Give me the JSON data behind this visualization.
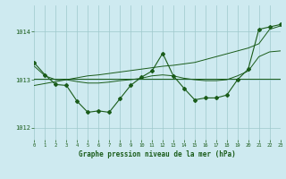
{
  "x": [
    0,
    1,
    2,
    3,
    4,
    5,
    6,
    7,
    8,
    9,
    10,
    11,
    12,
    13,
    14,
    15,
    16,
    17,
    18,
    19,
    20,
    21,
    22,
    23
  ],
  "line_main": [
    1013.35,
    1013.1,
    1012.9,
    1012.88,
    1012.55,
    1012.32,
    1012.35,
    1012.32,
    1012.6,
    1012.88,
    1013.05,
    1013.18,
    1013.55,
    1013.08,
    1012.82,
    1012.58,
    1012.62,
    1012.62,
    1012.68,
    1013.0,
    1013.22,
    1014.05,
    1014.1,
    1014.15
  ],
  "line_flat": [
    1013.02,
    1013.02,
    1013.02,
    1013.02,
    1013.02,
    1013.02,
    1013.02,
    1013.02,
    1013.02,
    1013.02,
    1013.02,
    1013.02,
    1013.02,
    1013.02,
    1013.02,
    1013.02,
    1013.02,
    1013.02,
    1013.02,
    1013.02,
    1013.02,
    1013.02,
    1013.02,
    1013.02
  ],
  "line_trend": [
    1012.88,
    1012.92,
    1012.96,
    1013.0,
    1013.04,
    1013.08,
    1013.1,
    1013.13,
    1013.16,
    1013.19,
    1013.22,
    1013.25,
    1013.28,
    1013.3,
    1013.33,
    1013.36,
    1013.42,
    1013.48,
    1013.54,
    1013.6,
    1013.66,
    1013.75,
    1014.05,
    1014.12
  ],
  "line_smooth": [
    1013.28,
    1013.08,
    1013.0,
    1013.0,
    1012.96,
    1012.93,
    1012.93,
    1012.95,
    1012.98,
    1013.0,
    1013.03,
    1013.08,
    1013.1,
    1013.08,
    1013.03,
    1013.0,
    1012.98,
    1012.98,
    1013.0,
    1013.08,
    1013.18,
    1013.48,
    1013.58,
    1013.6
  ],
  "bg_color": "#ceeaf0",
  "line_color": "#1a5c1a",
  "grid_color": "#9ec8cc",
  "ylabel_ticks": [
    1012,
    1013,
    1014
  ],
  "xlabel": "Graphe pression niveau de la mer (hPa)",
  "xlabel_color": "#1a5c1a",
  "ylim": [
    1011.75,
    1014.55
  ],
  "xlim": [
    0,
    23
  ]
}
